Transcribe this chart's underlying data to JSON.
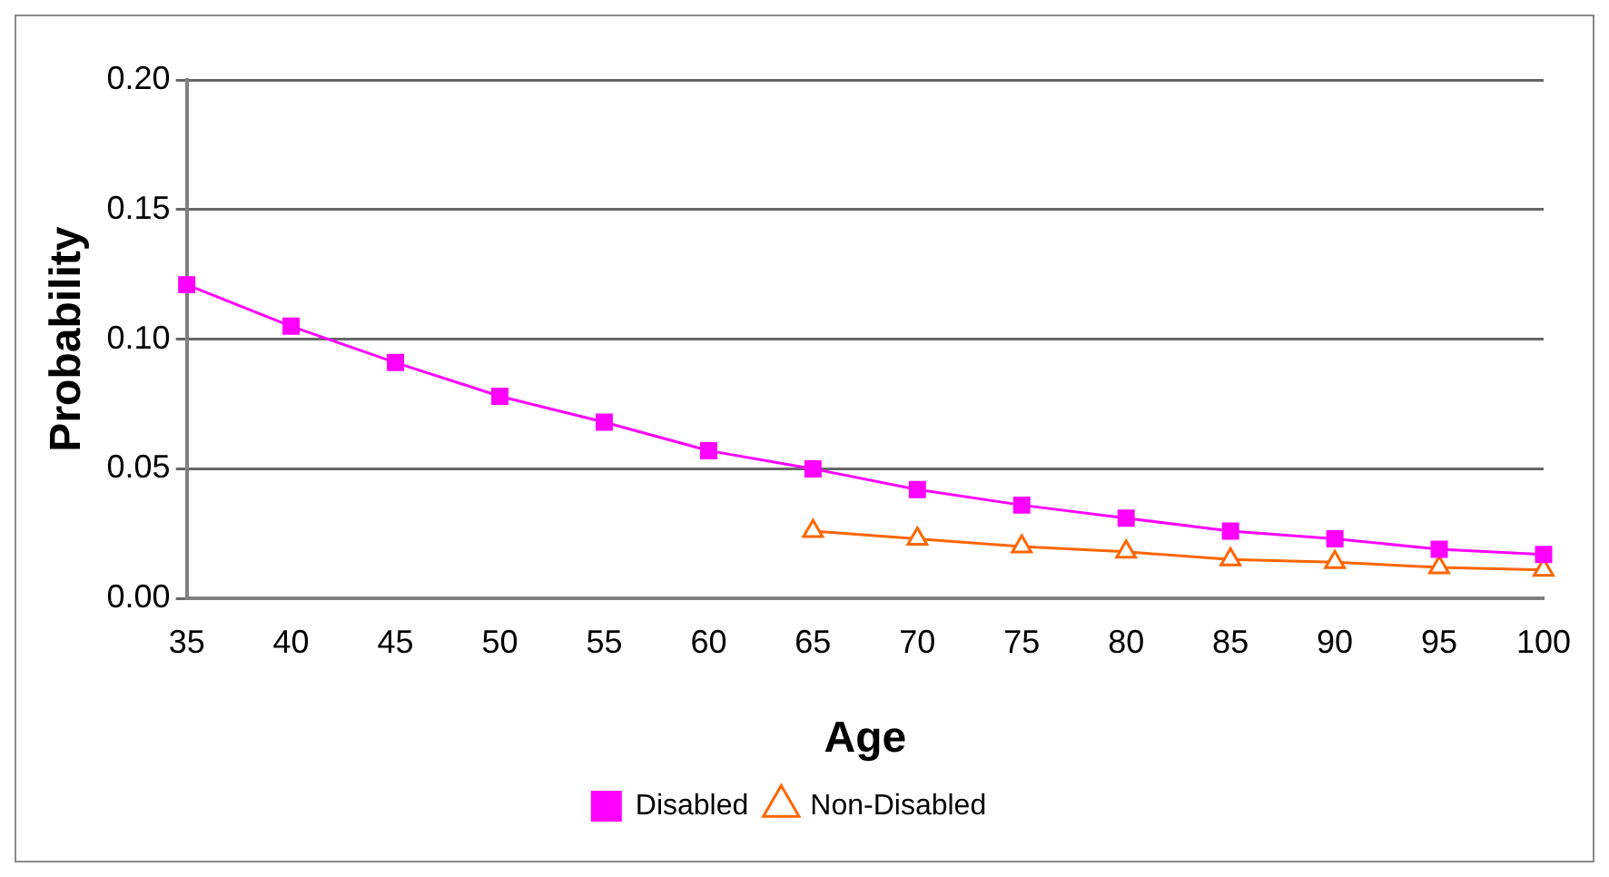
{
  "chart_data": {
    "type": "line",
    "xlabel": "Age",
    "ylabel": "Probability",
    "categories": [
      "35",
      "40",
      "45",
      "50",
      "55",
      "60",
      "65",
      "70",
      "75",
      "80",
      "85",
      "90",
      "95",
      "100"
    ],
    "series": [
      {
        "name": "Disabled",
        "color": "#ff00ff",
        "marker": "square",
        "values": [
          0.121,
          0.105,
          0.091,
          0.078,
          0.068,
          0.057,
          0.05,
          0.042,
          0.036,
          0.031,
          0.026,
          0.023,
          0.019,
          0.017
        ]
      },
      {
        "name": "Non-Disabled",
        "color": "#ff6600",
        "marker": "triangle",
        "values": [
          null,
          null,
          null,
          null,
          null,
          null,
          0.026,
          0.023,
          0.02,
          0.018,
          0.015,
          0.014,
          0.012,
          0.011
        ]
      }
    ],
    "ylim": [
      0,
      0.2
    ],
    "yticks": [
      {
        "value": 0,
        "label": "0.00"
      },
      0.05,
      {
        "value": 0.1,
        "label": "0.10"
      },
      0.15,
      {
        "value": 0.2,
        "label": "0.20"
      }
    ],
    "grid": "y",
    "legend": "bottom"
  }
}
